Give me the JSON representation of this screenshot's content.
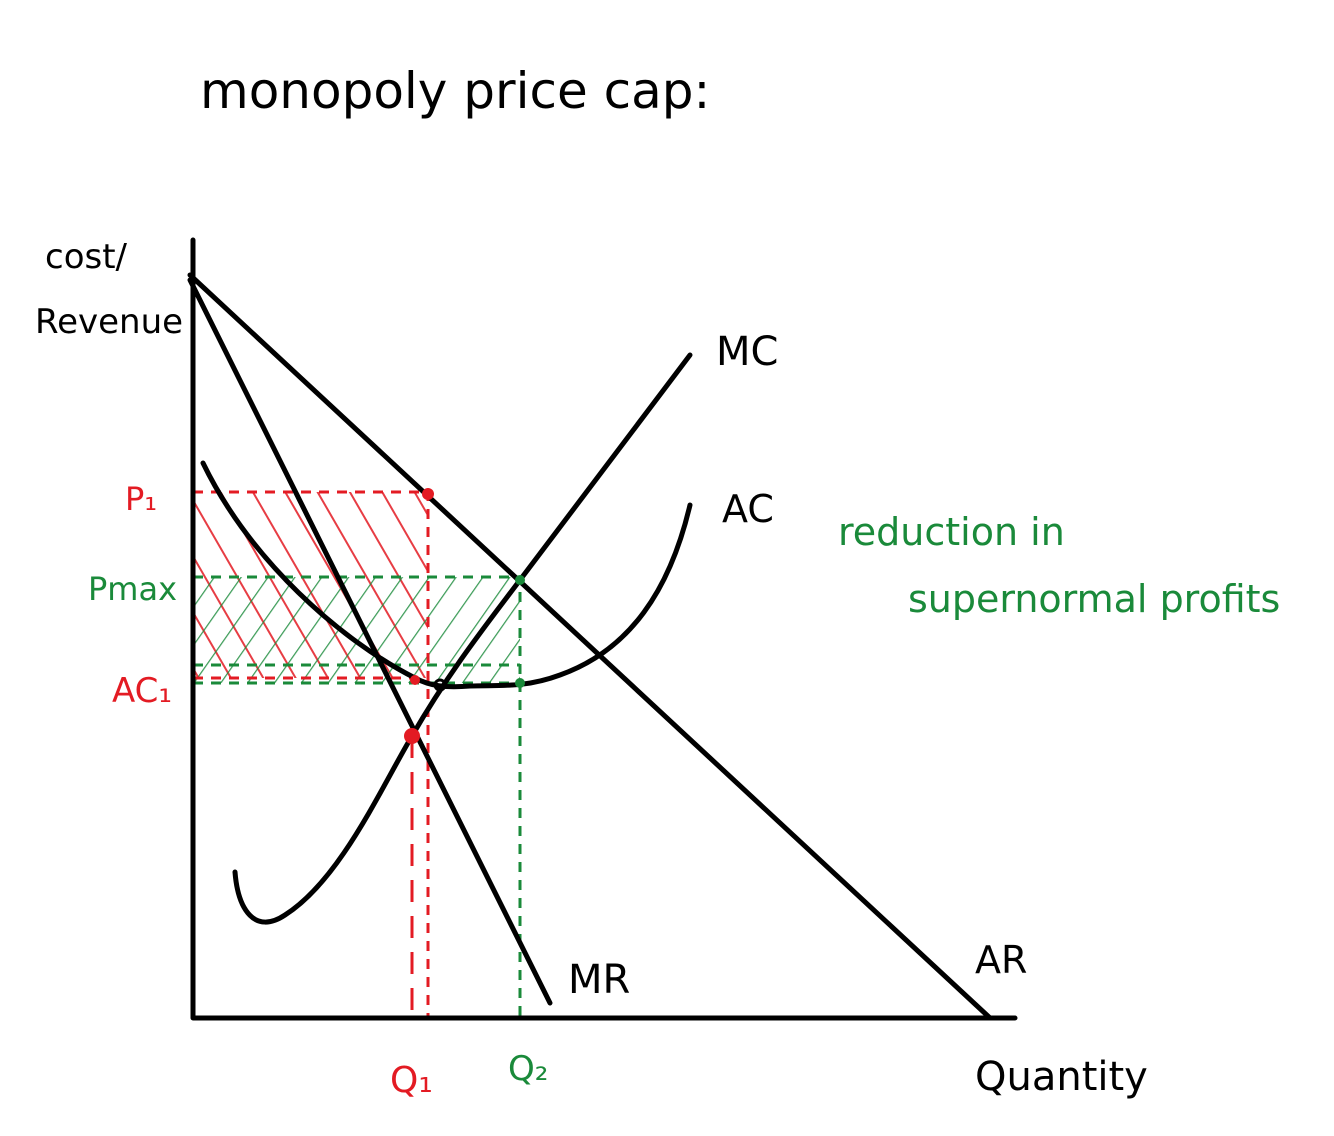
{
  "title": "monopoly price cap:",
  "axes": {
    "y_label": [
      "cost/",
      "Revenue"
    ],
    "x_label": "Quantity"
  },
  "curves": {
    "mc": "MC",
    "ac": "AC",
    "mr": "MR",
    "ar": "AR"
  },
  "price_levels": {
    "p1": "P₁",
    "pmax": "Pmax",
    "ac1": "AC₁"
  },
  "quantities": {
    "q1": "Q₁",
    "q2": "Q₂"
  },
  "annotation": [
    "reduction in",
    "supernormal profits"
  ]
}
